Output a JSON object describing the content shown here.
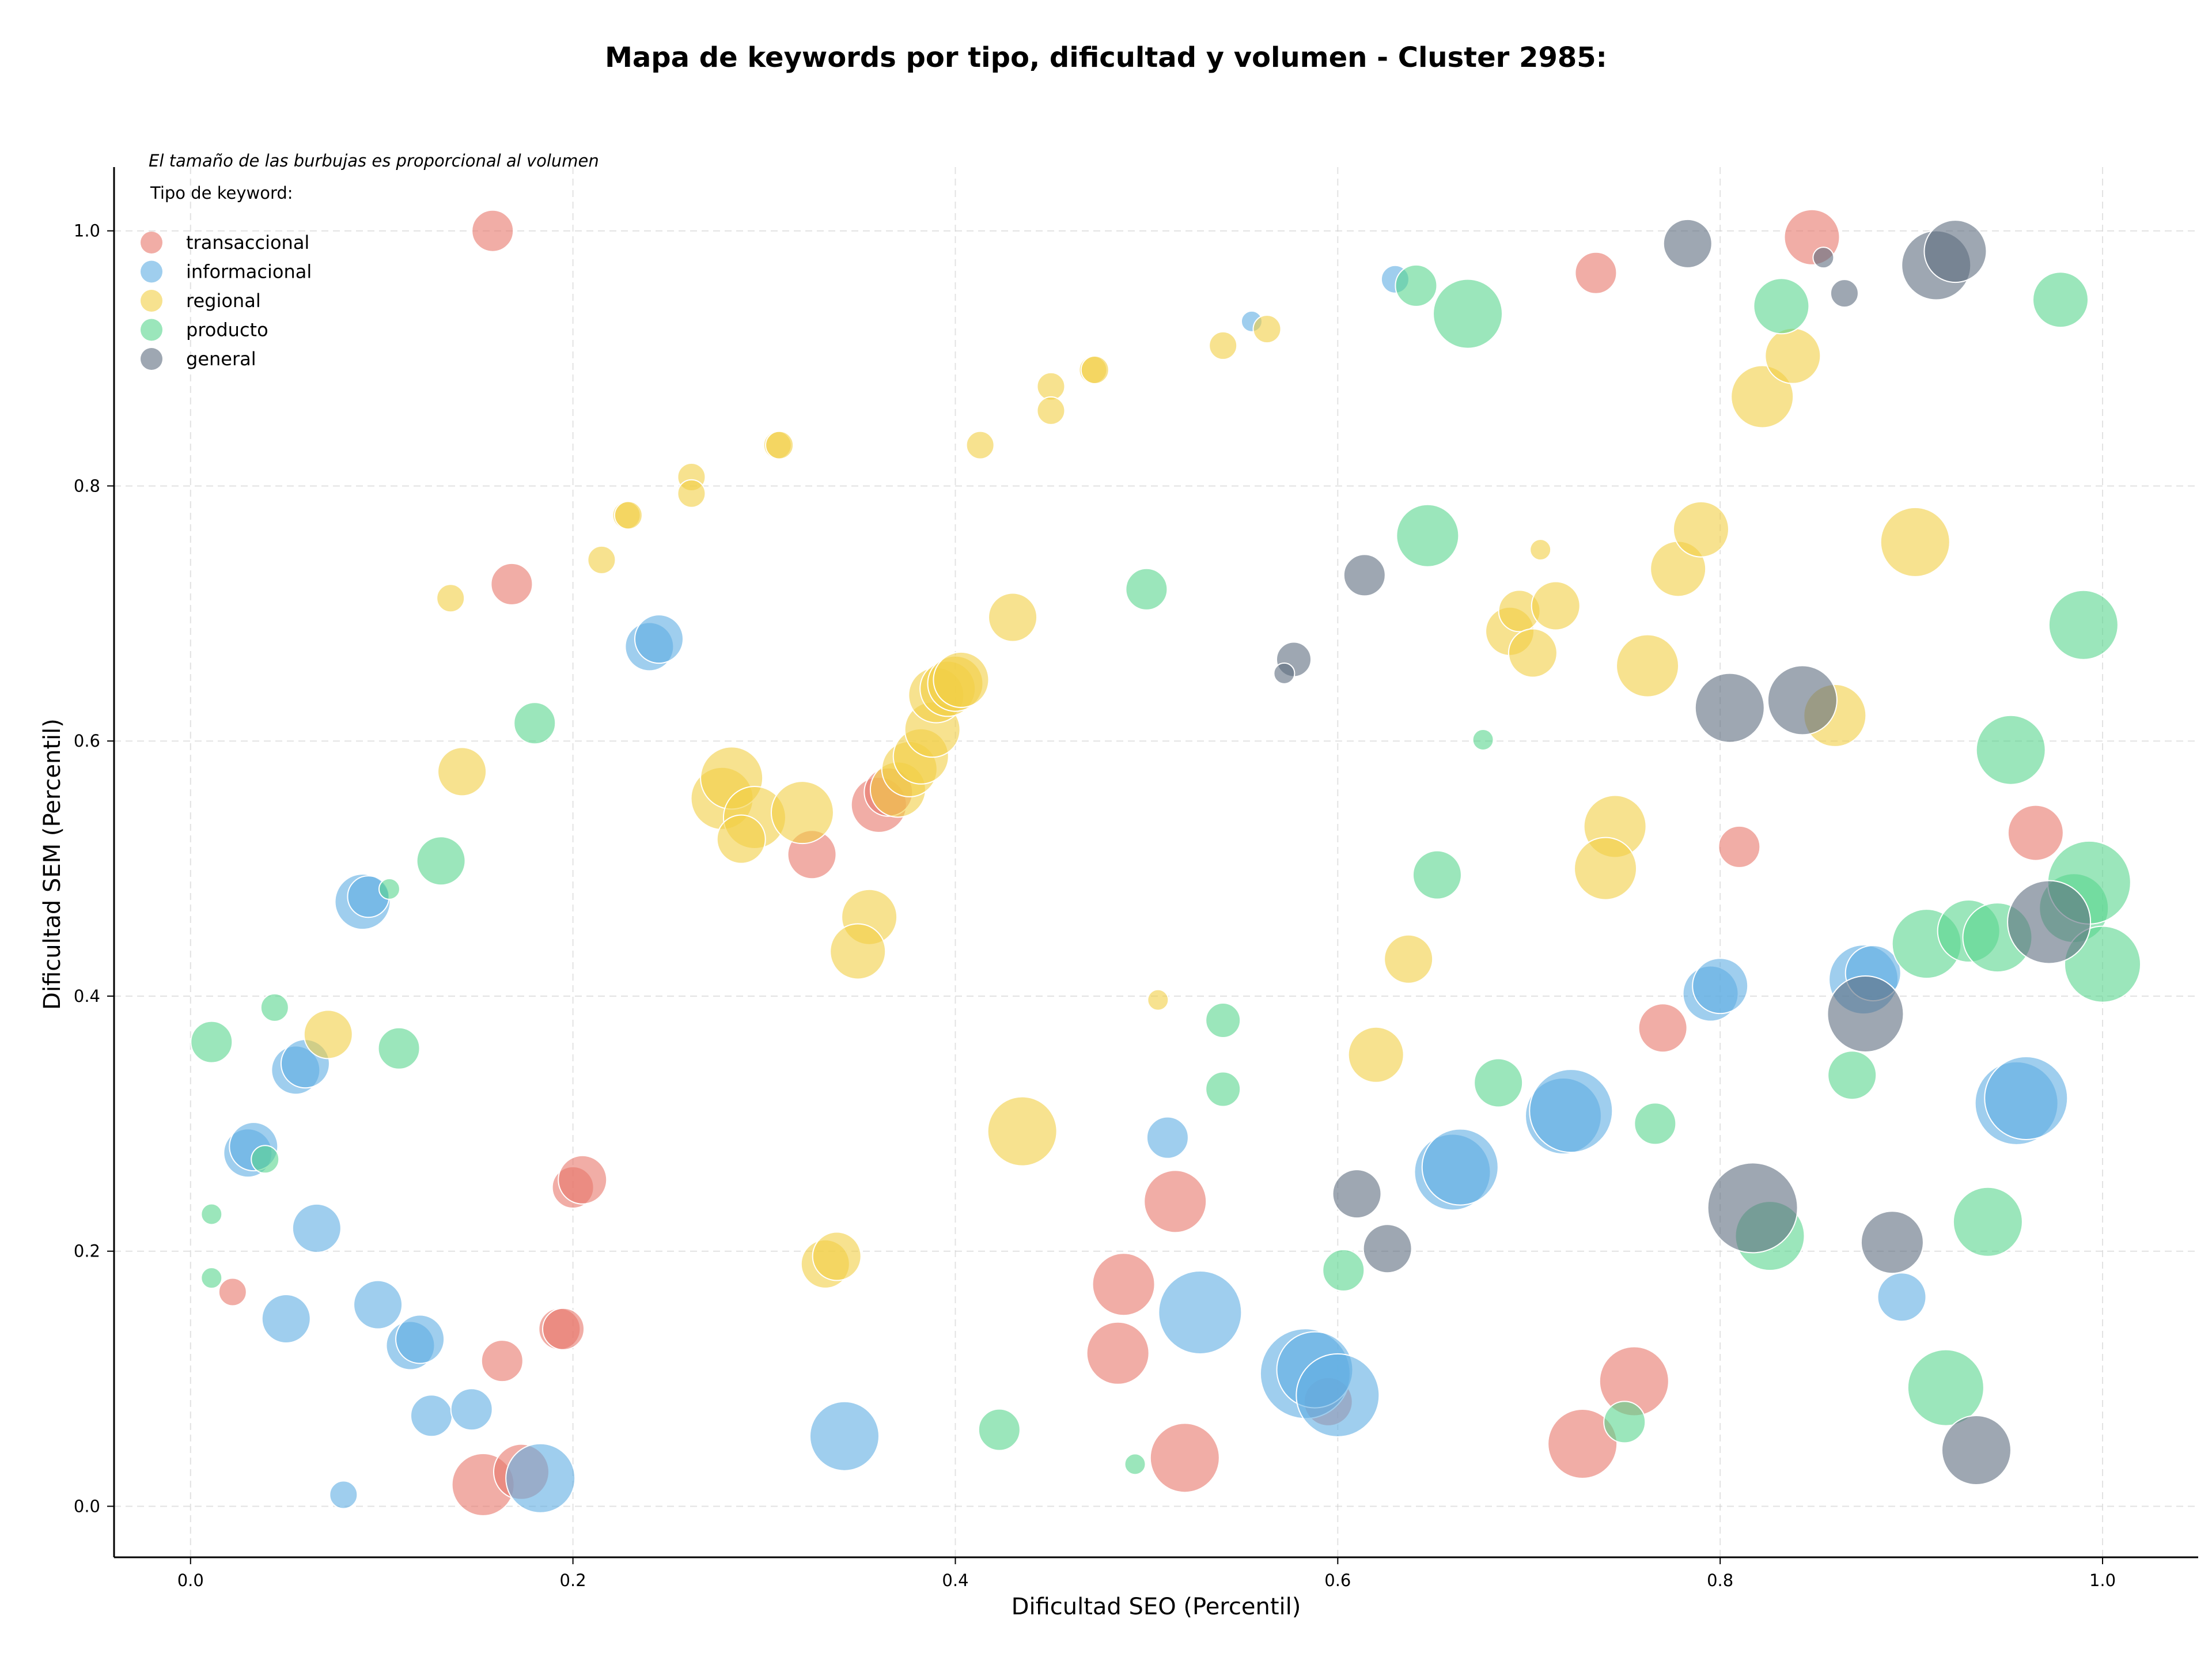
{
  "chart_data": {
    "type": "scatter",
    "title": "Mapa de keywords por tipo, dificultad y volumen - Cluster 2985:",
    "xlabel": "Dificultad SEO (Percentil)",
    "ylabel": "Dificultad SEM (Percentil)",
    "note": "El tamaño de las burbujas es proporcional al volumen",
    "legend_title": "Tipo de keyword:",
    "legend_position": "top-left",
    "xlim": [
      -0.04,
      1.05
    ],
    "ylim": [
      -0.04,
      1.05
    ],
    "xticks": [
      0.0,
      0.2,
      0.4,
      0.6,
      0.8,
      1.0
    ],
    "yticks": [
      0.0,
      0.2,
      0.4,
      0.6,
      0.8,
      1.0
    ],
    "xtick_labels": [
      "0.0",
      "0.2",
      "0.4",
      "0.6",
      "0.8",
      "1.0"
    ],
    "ytick_labels": [
      "0.0",
      "0.2",
      "0.4",
      "0.6",
      "0.8",
      "1.0"
    ],
    "grid": true,
    "opacity": 0.6,
    "series": [
      {
        "name": "transaccional",
        "color": "#e8776a",
        "points": [
          {
            "x": 0.158,
            "y": 1.0,
            "s": 4
          },
          {
            "x": 0.168,
            "y": 0.723,
            "s": 4
          },
          {
            "x": 0.325,
            "y": 0.511,
            "s": 5
          },
          {
            "x": 0.36,
            "y": 0.55,
            "s": 6
          },
          {
            "x": 0.365,
            "y": 0.56,
            "s": 5
          },
          {
            "x": 0.2,
            "y": 0.25,
            "s": 4
          },
          {
            "x": 0.205,
            "y": 0.256,
            "s": 5
          },
          {
            "x": 0.022,
            "y": 0.168,
            "s": 2
          },
          {
            "x": 0.163,
            "y": 0.114,
            "s": 4
          },
          {
            "x": 0.193,
            "y": 0.139,
            "s": 4
          },
          {
            "x": 0.195,
            "y": 0.139,
            "s": 4
          },
          {
            "x": 0.153,
            "y": 0.017,
            "s": 7
          },
          {
            "x": 0.173,
            "y": 0.027,
            "s": 6
          },
          {
            "x": 0.515,
            "y": 0.239,
            "s": 7
          },
          {
            "x": 0.488,
            "y": 0.174,
            "s": 7
          },
          {
            "x": 0.485,
            "y": 0.12,
            "s": 7
          },
          {
            "x": 0.52,
            "y": 0.038,
            "s": 8
          },
          {
            "x": 0.595,
            "y": 0.082,
            "s": 5
          },
          {
            "x": 0.735,
            "y": 0.967,
            "s": 4
          },
          {
            "x": 0.848,
            "y": 0.995,
            "s": 6
          },
          {
            "x": 0.81,
            "y": 0.517,
            "s": 4
          },
          {
            "x": 0.77,
            "y": 0.375,
            "s": 5
          },
          {
            "x": 0.755,
            "y": 0.098,
            "s": 8
          },
          {
            "x": 0.728,
            "y": 0.049,
            "s": 8
          },
          {
            "x": 0.965,
            "y": 0.528,
            "s": 6
          }
        ]
      },
      {
        "name": "informacional",
        "color": "#5faee3",
        "points": [
          {
            "x": 0.24,
            "y": 0.674,
            "s": 5
          },
          {
            "x": 0.245,
            "y": 0.68,
            "s": 5
          },
          {
            "x": 0.09,
            "y": 0.474,
            "s": 6
          },
          {
            "x": 0.093,
            "y": 0.478,
            "s": 4
          },
          {
            "x": 0.055,
            "y": 0.342,
            "s": 5
          },
          {
            "x": 0.06,
            "y": 0.347,
            "s": 5
          },
          {
            "x": 0.03,
            "y": 0.277,
            "s": 5
          },
          {
            "x": 0.033,
            "y": 0.282,
            "s": 5
          },
          {
            "x": 0.066,
            "y": 0.218,
            "s": 5
          },
          {
            "x": 0.05,
            "y": 0.147,
            "s": 5
          },
          {
            "x": 0.098,
            "y": 0.158,
            "s": 5
          },
          {
            "x": 0.115,
            "y": 0.126,
            "s": 5
          },
          {
            "x": 0.12,
            "y": 0.131,
            "s": 5
          },
          {
            "x": 0.126,
            "y": 0.071,
            "s": 4
          },
          {
            "x": 0.147,
            "y": 0.076,
            "s": 4
          },
          {
            "x": 0.08,
            "y": 0.009,
            "s": 2
          },
          {
            "x": 0.183,
            "y": 0.022,
            "s": 8
          },
          {
            "x": 0.342,
            "y": 0.055,
            "s": 8
          },
          {
            "x": 0.511,
            "y": 0.289,
            "s": 4
          },
          {
            "x": 0.528,
            "y": 0.152,
            "s": 10
          },
          {
            "x": 0.583,
            "y": 0.104,
            "s": 11
          },
          {
            "x": 0.588,
            "y": 0.107,
            "s": 9
          },
          {
            "x": 0.6,
            "y": 0.087,
            "s": 10
          },
          {
            "x": 0.63,
            "y": 0.962,
            "s": 2
          },
          {
            "x": 0.555,
            "y": 0.929,
            "s": 1
          },
          {
            "x": 0.66,
            "y": 0.262,
            "s": 9
          },
          {
            "x": 0.664,
            "y": 0.266,
            "s": 9
          },
          {
            "x": 0.718,
            "y": 0.306,
            "s": 9
          },
          {
            "x": 0.722,
            "y": 0.31,
            "s": 10
          },
          {
            "x": 0.795,
            "y": 0.402,
            "s": 6
          },
          {
            "x": 0.8,
            "y": 0.408,
            "s": 6
          },
          {
            "x": 0.875,
            "y": 0.413,
            "s": 8
          },
          {
            "x": 0.88,
            "y": 0.418,
            "s": 6
          },
          {
            "x": 0.895,
            "y": 0.164,
            "s": 5
          },
          {
            "x": 0.955,
            "y": 0.316,
            "s": 10
          },
          {
            "x": 0.96,
            "y": 0.32,
            "s": 10
          }
        ]
      },
      {
        "name": "regional",
        "color": "#f2cf45",
        "points": [
          {
            "x": 0.136,
            "y": 0.712,
            "s": 2
          },
          {
            "x": 0.142,
            "y": 0.576,
            "s": 5
          },
          {
            "x": 0.072,
            "y": 0.37,
            "s": 5
          },
          {
            "x": 0.215,
            "y": 0.742,
            "s": 2
          },
          {
            "x": 0.228,
            "y": 0.777,
            "s": 2
          },
          {
            "x": 0.229,
            "y": 0.777,
            "s": 2
          },
          {
            "x": 0.262,
            "y": 0.807,
            "s": 2
          },
          {
            "x": 0.262,
            "y": 0.794,
            "s": 2
          },
          {
            "x": 0.307,
            "y": 0.832,
            "s": 2
          },
          {
            "x": 0.308,
            "y": 0.832,
            "s": 2
          },
          {
            "x": 0.413,
            "y": 0.832,
            "s": 2
          },
          {
            "x": 0.45,
            "y": 0.878,
            "s": 2
          },
          {
            "x": 0.45,
            "y": 0.859,
            "s": 2
          },
          {
            "x": 0.472,
            "y": 0.891,
            "s": 2
          },
          {
            "x": 0.473,
            "y": 0.891,
            "s": 2
          },
          {
            "x": 0.54,
            "y": 0.91,
            "s": 2
          },
          {
            "x": 0.563,
            "y": 0.923,
            "s": 2
          },
          {
            "x": 0.43,
            "y": 0.697,
            "s": 5
          },
          {
            "x": 0.278,
            "y": 0.555,
            "s": 7
          },
          {
            "x": 0.283,
            "y": 0.571,
            "s": 7
          },
          {
            "x": 0.295,
            "y": 0.54,
            "s": 7
          },
          {
            "x": 0.288,
            "y": 0.523,
            "s": 5
          },
          {
            "x": 0.32,
            "y": 0.544,
            "s": 7
          },
          {
            "x": 0.37,
            "y": 0.562,
            "s": 6
          },
          {
            "x": 0.376,
            "y": 0.578,
            "s": 6
          },
          {
            "x": 0.382,
            "y": 0.588,
            "s": 6
          },
          {
            "x": 0.388,
            "y": 0.609,
            "s": 6
          },
          {
            "x": 0.39,
            "y": 0.636,
            "s": 6
          },
          {
            "x": 0.396,
            "y": 0.641,
            "s": 6
          },
          {
            "x": 0.4,
            "y": 0.645,
            "s": 6
          },
          {
            "x": 0.403,
            "y": 0.648,
            "s": 6
          },
          {
            "x": 0.355,
            "y": 0.462,
            "s": 6
          },
          {
            "x": 0.349,
            "y": 0.435,
            "s": 6
          },
          {
            "x": 0.332,
            "y": 0.19,
            "s": 5
          },
          {
            "x": 0.338,
            "y": 0.196,
            "s": 5
          },
          {
            "x": 0.435,
            "y": 0.294,
            "s": 8
          },
          {
            "x": 0.506,
            "y": 0.397,
            "s": 1
          },
          {
            "x": 0.62,
            "y": 0.354,
            "s": 6
          },
          {
            "x": 0.637,
            "y": 0.429,
            "s": 5
          },
          {
            "x": 0.69,
            "y": 0.686,
            "s": 5
          },
          {
            "x": 0.695,
            "y": 0.702,
            "s": 4
          },
          {
            "x": 0.702,
            "y": 0.669,
            "s": 5
          },
          {
            "x": 0.714,
            "y": 0.706,
            "s": 5
          },
          {
            "x": 0.706,
            "y": 0.75,
            "s": 1
          },
          {
            "x": 0.762,
            "y": 0.659,
            "s": 7
          },
          {
            "x": 0.745,
            "y": 0.533,
            "s": 7
          },
          {
            "x": 0.74,
            "y": 0.5,
            "s": 7
          },
          {
            "x": 0.778,
            "y": 0.735,
            "s": 6
          },
          {
            "x": 0.79,
            "y": 0.766,
            "s": 6
          },
          {
            "x": 0.822,
            "y": 0.87,
            "s": 7
          },
          {
            "x": 0.838,
            "y": 0.902,
            "s": 6
          },
          {
            "x": 0.86,
            "y": 0.62,
            "s": 7
          },
          {
            "x": 0.902,
            "y": 0.756,
            "s": 8
          }
        ]
      },
      {
        "name": "producto",
        "color": "#58d68d",
        "points": [
          {
            "x": 0.18,
            "y": 0.614,
            "s": 4
          },
          {
            "x": 0.131,
            "y": 0.506,
            "s": 5
          },
          {
            "x": 0.104,
            "y": 0.484,
            "s": 1
          },
          {
            "x": 0.011,
            "y": 0.364,
            "s": 4
          },
          {
            "x": 0.044,
            "y": 0.391,
            "s": 2
          },
          {
            "x": 0.109,
            "y": 0.359,
            "s": 4
          },
          {
            "x": 0.039,
            "y": 0.272,
            "s": 2
          },
          {
            "x": 0.011,
            "y": 0.229,
            "s": 1
          },
          {
            "x": 0.011,
            "y": 0.179,
            "s": 1
          },
          {
            "x": 0.423,
            "y": 0.06,
            "s": 4
          },
          {
            "x": 0.494,
            "y": 0.033,
            "s": 1
          },
          {
            "x": 0.5,
            "y": 0.719,
            "s": 4
          },
          {
            "x": 0.54,
            "y": 0.381,
            "s": 3
          },
          {
            "x": 0.54,
            "y": 0.327,
            "s": 3
          },
          {
            "x": 0.603,
            "y": 0.185,
            "s": 4
          },
          {
            "x": 0.641,
            "y": 0.957,
            "s": 4
          },
          {
            "x": 0.668,
            "y": 0.935,
            "s": 8
          },
          {
            "x": 0.647,
            "y": 0.761,
            "s": 7
          },
          {
            "x": 0.652,
            "y": 0.495,
            "s": 5
          },
          {
            "x": 0.676,
            "y": 0.601,
            "s": 1
          },
          {
            "x": 0.684,
            "y": 0.332,
            "s": 5
          },
          {
            "x": 0.75,
            "y": 0.066,
            "s": 4
          },
          {
            "x": 0.766,
            "y": 0.3,
            "s": 4
          },
          {
            "x": 0.832,
            "y": 0.941,
            "s": 6
          },
          {
            "x": 0.869,
            "y": 0.338,
            "s": 5
          },
          {
            "x": 0.826,
            "y": 0.212,
            "s": 8
          },
          {
            "x": 0.908,
            "y": 0.441,
            "s": 8
          },
          {
            "x": 0.93,
            "y": 0.451,
            "s": 7
          },
          {
            "x": 0.945,
            "y": 0.446,
            "s": 8
          },
          {
            "x": 0.952,
            "y": 0.593,
            "s": 8
          },
          {
            "x": 0.94,
            "y": 0.223,
            "s": 8
          },
          {
            "x": 0.918,
            "y": 0.093,
            "s": 9
          },
          {
            "x": 0.978,
            "y": 0.946,
            "s": 6
          },
          {
            "x": 0.99,
            "y": 0.691,
            "s": 8
          },
          {
            "x": 0.985,
            "y": 0.469,
            "s": 8
          },
          {
            "x": 0.993,
            "y": 0.489,
            "s": 10
          },
          {
            "x": 1.0,
            "y": 0.425,
            "s": 9
          }
        ]
      },
      {
        "name": "general",
        "color": "#5d6d7e",
        "points": [
          {
            "x": 0.577,
            "y": 0.664,
            "s": 3
          },
          {
            "x": 0.572,
            "y": 0.653,
            "s": 1
          },
          {
            "x": 0.614,
            "y": 0.73,
            "s": 4
          },
          {
            "x": 0.61,
            "y": 0.245,
            "s": 5
          },
          {
            "x": 0.626,
            "y": 0.202,
            "s": 5
          },
          {
            "x": 0.783,
            "y": 0.99,
            "s": 5
          },
          {
            "x": 0.854,
            "y": 0.979,
            "s": 1
          },
          {
            "x": 0.865,
            "y": 0.951,
            "s": 2
          },
          {
            "x": 0.913,
            "y": 0.973,
            "s": 8
          },
          {
            "x": 0.923,
            "y": 0.984,
            "s": 7
          },
          {
            "x": 0.805,
            "y": 0.626,
            "s": 8
          },
          {
            "x": 0.843,
            "y": 0.632,
            "s": 8
          },
          {
            "x": 0.972,
            "y": 0.458,
            "s": 10
          },
          {
            "x": 0.876,
            "y": 0.386,
            "s": 9
          },
          {
            "x": 0.817,
            "y": 0.234,
            "s": 11
          },
          {
            "x": 0.89,
            "y": 0.207,
            "s": 7
          },
          {
            "x": 0.934,
            "y": 0.044,
            "s": 8
          }
        ]
      }
    ]
  }
}
